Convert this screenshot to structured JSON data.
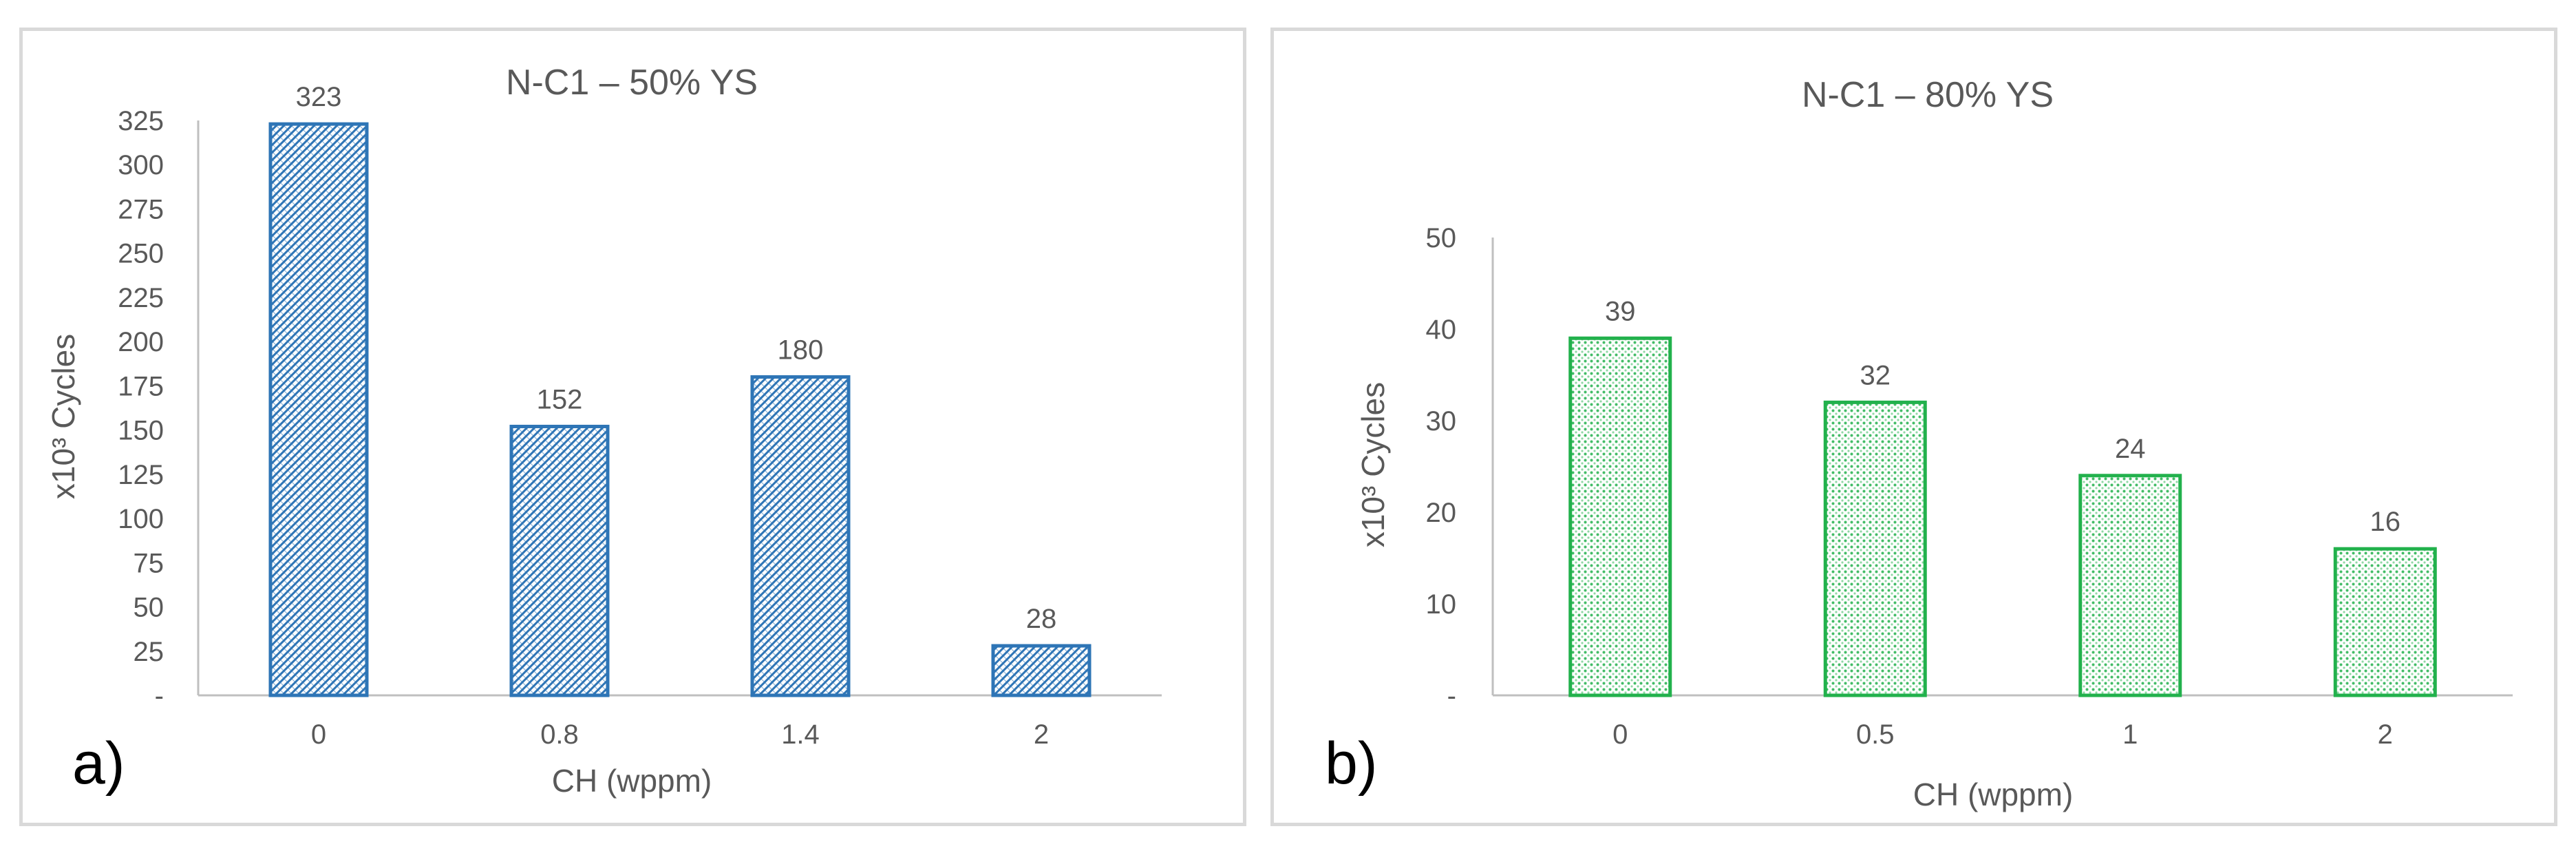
{
  "chart_data": [
    {
      "type": "bar",
      "panel_label": "a)",
      "title": "N-C1 – 50% YS",
      "xlabel": "CH (wppm)",
      "ylabel": "x10³ Cycles",
      "categories": [
        "0",
        "0.8",
        "1.4",
        "2"
      ],
      "values": [
        323,
        152,
        180,
        28
      ],
      "data_labels": [
        "323",
        "152",
        "180",
        "28"
      ],
      "ylim": [
        0,
        325
      ],
      "yticks": [
        0,
        25,
        50,
        75,
        100,
        125,
        150,
        175,
        200,
        225,
        250,
        275,
        300,
        325
      ],
      "ytick_labels": [
        "-",
        "25",
        "50",
        "75",
        "100",
        "125",
        "150",
        "175",
        "200",
        "225",
        "250",
        "275",
        "300",
        "325"
      ],
      "grid": false,
      "legend": "none",
      "color": "#2e75b6",
      "fill_pattern": "diagonal-hatch"
    },
    {
      "type": "bar",
      "panel_label": "b)",
      "title": "N-C1 – 80% YS",
      "xlabel": "CH (wppm)",
      "ylabel": "x10³ Cycles",
      "categories": [
        "0",
        "0.5",
        "1",
        "2"
      ],
      "values": [
        39,
        32,
        24,
        16
      ],
      "data_labels": [
        "39",
        "32",
        "24",
        "16"
      ],
      "ylim": [
        0,
        50
      ],
      "yticks": [
        0,
        10,
        20,
        30,
        40,
        50
      ],
      "ytick_labels": [
        "-",
        "10",
        "20",
        "30",
        "40",
        "50"
      ],
      "grid": false,
      "legend": "none",
      "color": "#22b14c",
      "fill_pattern": "dotted-grid"
    }
  ]
}
